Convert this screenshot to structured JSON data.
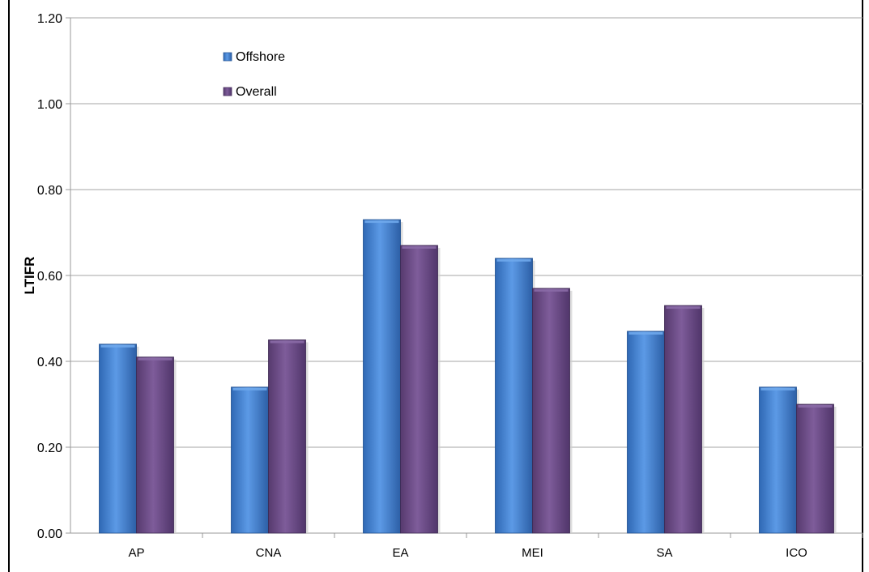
{
  "chart_data": {
    "type": "bar",
    "title": "",
    "xlabel": "",
    "ylabel": "LTIFR",
    "ylim": [
      0,
      1.2
    ],
    "y_ticks": [
      "0.00",
      "0.20",
      "0.40",
      "0.60",
      "0.80",
      "1.00",
      "1.20"
    ],
    "categories": [
      "AP",
      "CNA",
      "EA",
      "MEI",
      "SA",
      "ICO"
    ],
    "series": [
      {
        "name": "Offshore",
        "color": "#3f7fd0",
        "values": [
          0.44,
          0.34,
          0.73,
          0.64,
          0.47,
          0.34
        ]
      },
      {
        "name": "Overall",
        "color": "#6b4a86",
        "values": [
          0.41,
          0.45,
          0.67,
          0.57,
          0.53,
          0.3
        ]
      }
    ],
    "grid": "horizontal",
    "legend_position": "top-left"
  }
}
